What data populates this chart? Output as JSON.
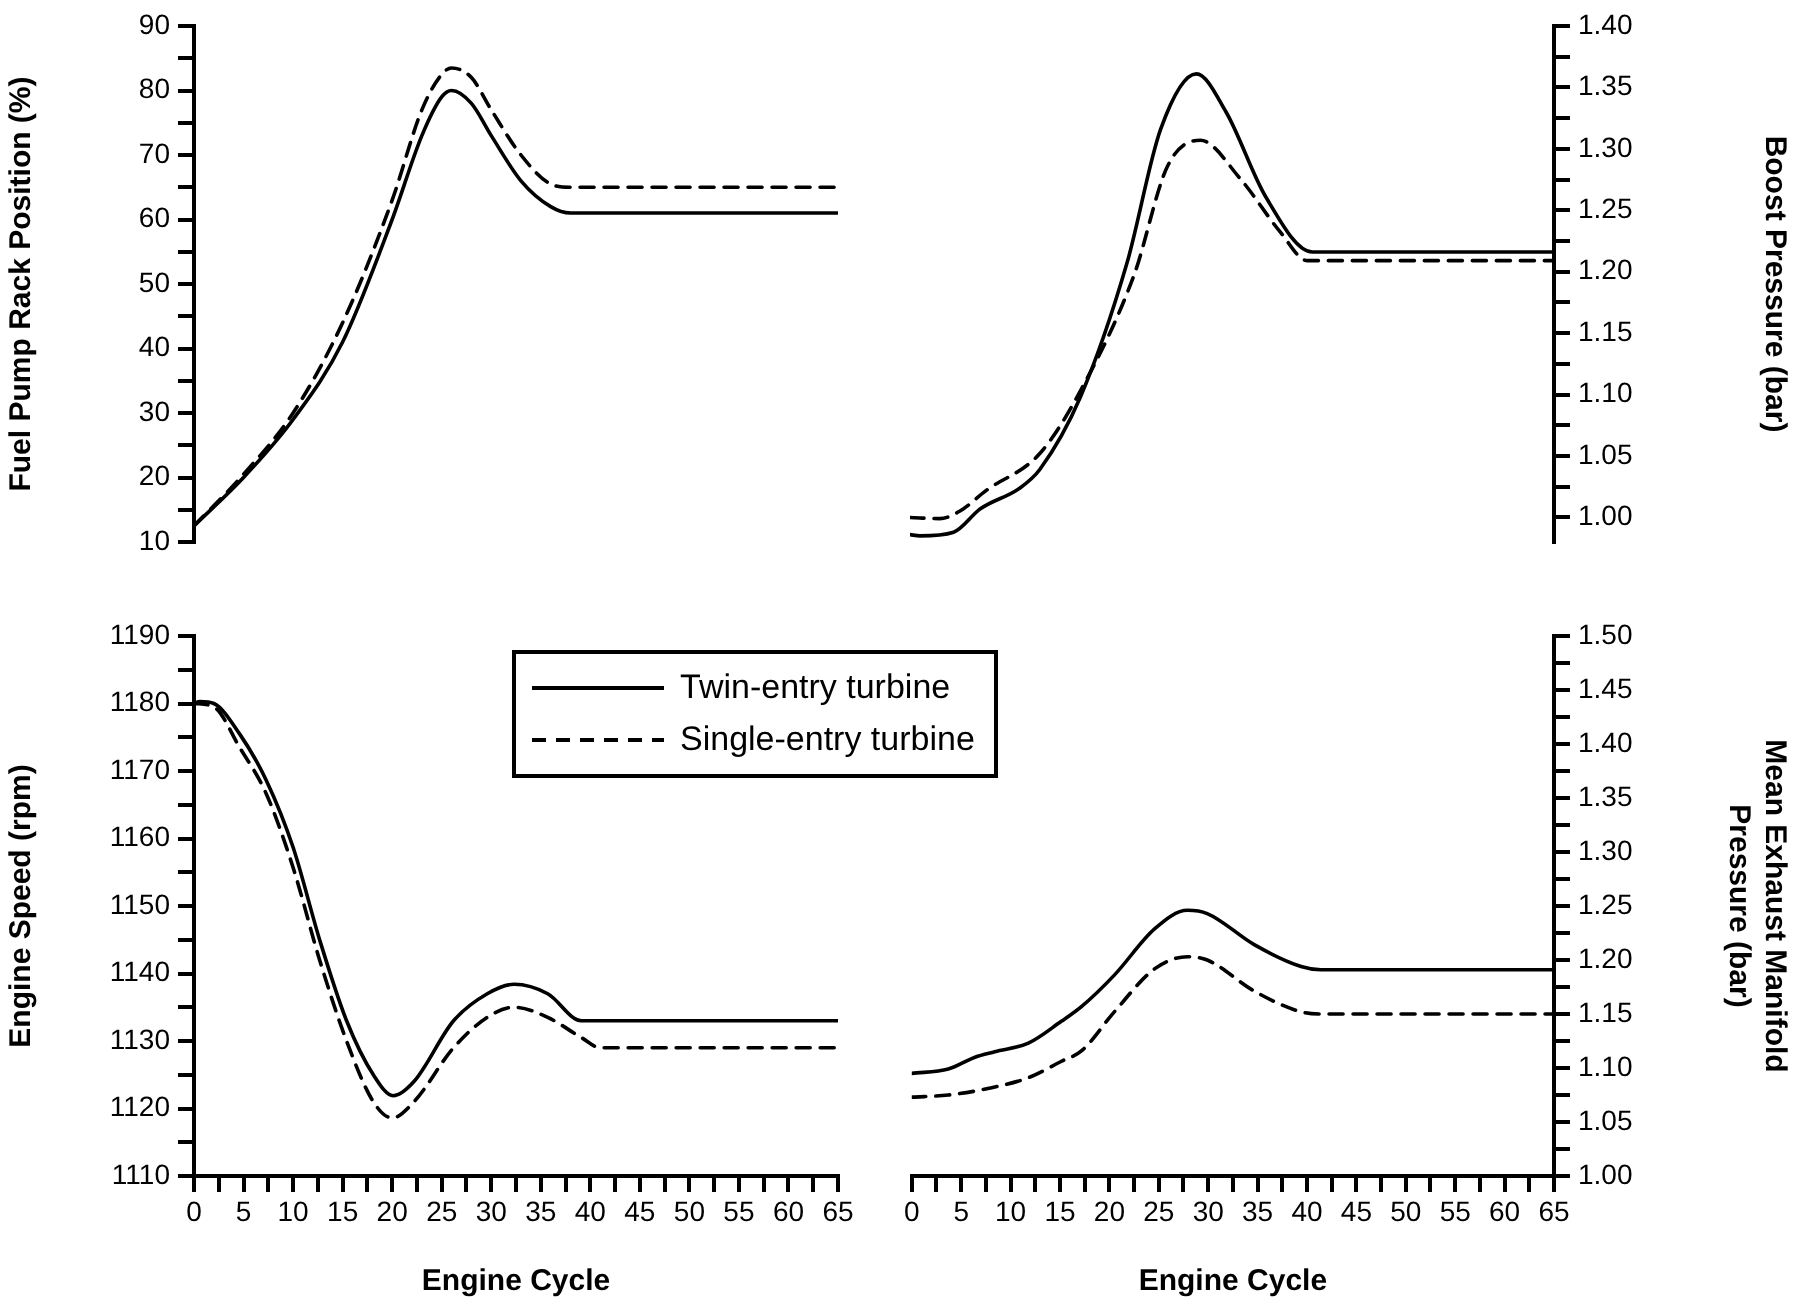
{
  "chart_data": [
    {
      "type": "line",
      "ylabel": "Fuel Pump Rack Position (%)",
      "xlim": [
        0,
        65
      ],
      "ylim": [
        10,
        90
      ],
      "yticks": [
        10,
        {
          "value": 15,
          "label": null
        },
        20,
        {
          "value": 25,
          "label": null
        },
        30,
        {
          "value": 35,
          "label": null
        },
        40,
        {
          "value": 45,
          "label": null
        },
        50,
        {
          "value": 55,
          "label": null
        },
        60,
        {
          "value": 65,
          "label": null
        },
        70,
        {
          "value": 75,
          "label": null
        },
        80,
        {
          "value": 85,
          "label": null
        },
        90
      ],
      "tick_labels": "y",
      "marker": "none",
      "series": [
        {
          "color": "#000000",
          "line_style": "solid",
          "x": [
            0,
            5,
            10,
            15,
            20,
            23,
            25,
            26,
            28,
            30,
            33,
            36,
            38,
            40,
            65
          ],
          "values": [
            12.5,
            20,
            29,
            41,
            60,
            73,
            79,
            80,
            78,
            73,
            66,
            62,
            61,
            61,
            61
          ]
        },
        {
          "color": "#000000",
          "line_style": "dashed",
          "x": [
            0,
            5,
            10,
            15,
            20,
            23,
            25,
            26,
            28,
            30,
            33,
            36,
            38,
            40,
            65
          ],
          "values": [
            12.5,
            20.5,
            30,
            44,
            63,
            77,
            82.5,
            83.5,
            82,
            77,
            70,
            65.5,
            65,
            65,
            65
          ]
        }
      ]
    },
    {
      "type": "line",
      "y2label": "Boost Pressure (bar)",
      "xlim": [
        0,
        65
      ],
      "y2lim": [
        0.98,
        1.4
      ],
      "y2ticks": [
        {
          "value": 1,
          "label": "1.00"
        },
        {
          "value": 1.025,
          "label": null
        },
        1.05,
        {
          "value": 1.075,
          "label": null
        },
        {
          "value": 1.1,
          "label": "1.10"
        },
        {
          "value": 1.125,
          "label": null
        },
        1.15,
        {
          "value": 1.175,
          "label": null
        },
        {
          "value": 1.2,
          "label": "1.20"
        },
        {
          "value": 1.225,
          "label": null
        },
        1.25,
        {
          "value": 1.275,
          "label": null
        },
        {
          "value": 1.3,
          "label": "1.30"
        },
        {
          "value": 1.325,
          "label": null
        },
        1.35,
        {
          "value": 1.375,
          "label": null
        },
        {
          "value": 1.4,
          "label": "1.40"
        }
      ],
      "tick_labels": "y",
      "marker": "none",
      "series": [
        {
          "color": "#000000",
          "line_style": "solid",
          "axis": "y2",
          "x": [
            0,
            1,
            4.4,
            7.1,
            11.1,
            13.1,
            17.2,
            21.9,
            25.3,
            28.9,
            31.9,
            35.9,
            40.6,
            65
          ],
          "values": [
            0.986,
            0.985,
            0.988,
            1.007,
            1.024,
            1.039,
            1.098,
            1.207,
            1.316,
            1.361,
            1.33,
            1.261,
            1.216,
            1.216
          ]
        },
        {
          "color": "#000000",
          "line_style": "dashed",
          "axis": "y2",
          "x": [
            0,
            3,
            5,
            7.7,
            13.1,
            17.2,
            22.6,
            26,
            29.3,
            33.3,
            37.4,
            40.1,
            65
          ],
          "values": [
            1.0,
            0.999,
            1.005,
            1.022,
            1.052,
            1.103,
            1.197,
            1.286,
            1.307,
            1.276,
            1.232,
            1.209,
            1.209
          ]
        }
      ]
    },
    {
      "type": "line",
      "xlabel": "Engine Cycle",
      "ylabel": "Engine Speed (rpm)",
      "xlim": [
        0,
        65
      ],
      "xticks": [
        0,
        {
          "value": 2.5,
          "label": null
        },
        5,
        {
          "value": 7.5,
          "label": null
        },
        10,
        {
          "value": 12.5,
          "label": null
        },
        15,
        {
          "value": 17.5,
          "label": null
        },
        20,
        {
          "value": 22.5,
          "label": null
        },
        25,
        {
          "value": 27.5,
          "label": null
        },
        30,
        {
          "value": 32.5,
          "label": null
        },
        35,
        {
          "value": 37.5,
          "label": null
        },
        40,
        {
          "value": 42.5,
          "label": null
        },
        45,
        {
          "value": 47.5,
          "label": null
        },
        50,
        {
          "value": 52.5,
          "label": null
        },
        55,
        {
          "value": 57.5,
          "label": null
        },
        60,
        {
          "value": 62.5,
          "label": null
        },
        65
      ],
      "ylim": [
        1110,
        1190
      ],
      "yticks": [
        1110,
        {
          "value": 1115,
          "label": null
        },
        1120,
        {
          "value": 1125,
          "label": null
        },
        1130,
        {
          "value": 1135,
          "label": null
        },
        1140,
        {
          "value": 1145,
          "label": null
        },
        1150,
        {
          "value": 1155,
          "label": null
        },
        1160,
        {
          "value": 1165,
          "label": null
        },
        1170,
        {
          "value": 1175,
          "label": null
        },
        1180,
        {
          "value": 1185,
          "label": null
        },
        1190
      ],
      "legend": "top right",
      "marker": "none",
      "series": [
        {
          "name": "Twin-entry turbine",
          "color": "#000000",
          "line_style": "solid",
          "x": [
            0,
            0.6,
            2,
            4.6,
            7.3,
            10,
            12.7,
            15.4,
            18.1,
            20.1,
            22.2,
            26.2,
            29.6,
            32.3,
            35.7,
            39.1,
            65
          ],
          "values": [
            1180,
            1180.3,
            1180,
            1175.5,
            1168.6,
            1158.7,
            1144.9,
            1133,
            1125,
            1121.9,
            1124,
            1133,
            1137,
            1138.4,
            1137,
            1133,
            1133
          ]
        },
        {
          "name": "Single-entry turbine",
          "color": "#000000",
          "line_style": "dashed",
          "x": [
            0,
            2,
            4.6,
            7.3,
            10,
            12.7,
            15.4,
            18.1,
            20,
            22.2,
            26.2,
            29.6,
            32.3,
            35.7,
            39.1,
            41,
            65
          ],
          "values": [
            1180,
            1179.5,
            1173.5,
            1166.6,
            1155.7,
            1141.9,
            1130,
            1121,
            1118.6,
            1121,
            1129,
            1133.5,
            1135,
            1133.5,
            1130.5,
            1129,
            1129
          ]
        }
      ]
    },
    {
      "type": "line",
      "xlabel": "Engine Cycle",
      "y2label": "Mean Exhaust Manifold\nPressure (bar)",
      "xlim": [
        0,
        65
      ],
      "xticks": [
        0,
        {
          "value": 2.5,
          "label": null
        },
        5,
        {
          "value": 7.5,
          "label": null
        },
        10,
        {
          "value": 12.5,
          "label": null
        },
        15,
        {
          "value": 17.5,
          "label": null
        },
        20,
        {
          "value": 22.5,
          "label": null
        },
        25,
        {
          "value": 27.5,
          "label": null
        },
        30,
        {
          "value": 32.5,
          "label": null
        },
        35,
        {
          "value": 37.5,
          "label": null
        },
        40,
        {
          "value": 42.5,
          "label": null
        },
        45,
        {
          "value": 47.5,
          "label": null
        },
        50,
        {
          "value": 52.5,
          "label": null
        },
        55,
        {
          "value": 57.5,
          "label": null
        },
        60,
        {
          "value": 62.5,
          "label": null
        },
        65
      ],
      "y2lim": [
        1.0,
        1.5
      ],
      "y2ticks": [
        {
          "value": 1,
          "label": "1.00"
        },
        {
          "value": 1.025,
          "label": null
        },
        1.05,
        {
          "value": 1.075,
          "label": null
        },
        {
          "value": 1.1,
          "label": "1.10"
        },
        {
          "value": 1.125,
          "label": null
        },
        1.15,
        {
          "value": 1.175,
          "label": null
        },
        {
          "value": 1.2,
          "label": "1.20"
        },
        {
          "value": 1.225,
          "label": null
        },
        1.25,
        {
          "value": 1.275,
          "label": null
        },
        {
          "value": 1.3,
          "label": "1.30"
        },
        {
          "value": 1.325,
          "label": null
        },
        1.35,
        {
          "value": 1.375,
          "label": null
        },
        {
          "value": 1.4,
          "label": "1.40"
        },
        {
          "value": 1.425,
          "label": null
        },
        1.45,
        {
          "value": 1.475,
          "label": null
        },
        {
          "value": 1.5,
          "label": "1.50"
        }
      ],
      "marker": "none",
      "series": [
        {
          "color": "#000000",
          "line_style": "solid",
          "axis": "y2",
          "x": [
            0,
            3.7,
            6.4,
            8.4,
            11.8,
            15.1,
            17.2,
            20.5,
            24.6,
            27.9,
            29.9,
            34.7,
            39.4,
            41.4,
            65
          ],
          "values": [
            1.095,
            1.099,
            1.11,
            1.115,
            1.123,
            1.143,
            1.157,
            1.186,
            1.229,
            1.246,
            1.243,
            1.214,
            1.194,
            1.191,
            1.191
          ]
        },
        {
          "color": "#000000",
          "line_style": "dashed",
          "axis": "y2",
          "x": [
            0,
            3.7,
            7.7,
            11.8,
            15.1,
            17.2,
            20.5,
            24.6,
            27.9,
            29.9,
            34.7,
            39.4,
            41.4,
            65
          ],
          "values": [
            1.073,
            1.075,
            1.081,
            1.091,
            1.106,
            1.116,
            1.152,
            1.192,
            1.203,
            1.2,
            1.171,
            1.152,
            1.15,
            1.15
          ]
        }
      ]
    }
  ]
}
